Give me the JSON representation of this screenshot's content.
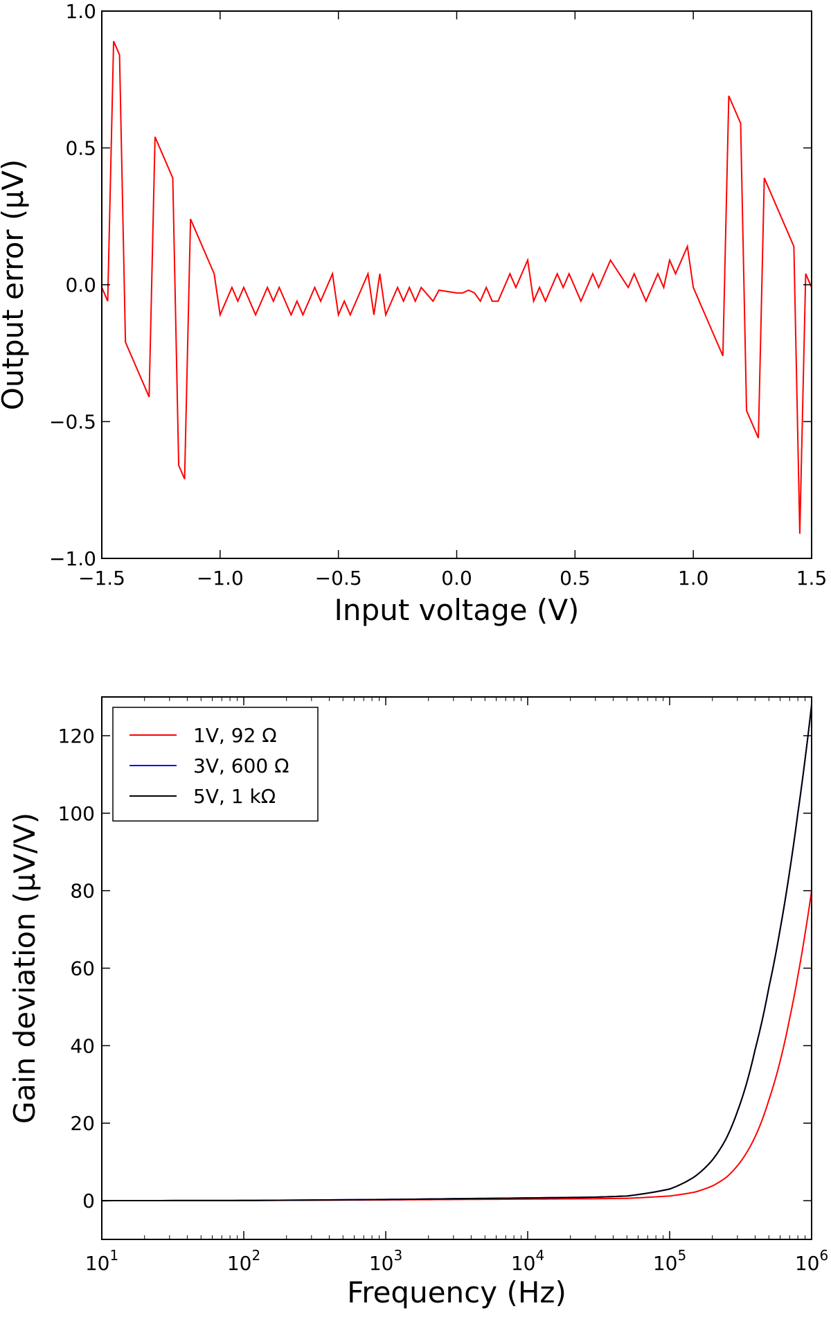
{
  "chart_data": [
    {
      "type": "line",
      "xlabel": "Input voltage (V)",
      "ylabel": "Output error (μV)",
      "xlim": [
        -1.5,
        1.5
      ],
      "ylim": [
        -1.0,
        1.0
      ],
      "xticks": [
        "−1.5",
        "−1.0",
        "−0.5",
        "0.0",
        "0.5",
        "1.0",
        "1.5"
      ],
      "xtick_values": [
        -1.5,
        -1.0,
        -0.5,
        0.0,
        0.5,
        1.0,
        1.5
      ],
      "yticks": [
        "−1.0",
        "−0.5",
        "0.0",
        "0.5",
        "1.0"
      ],
      "ytick_values": [
        -1.0,
        -0.5,
        0.0,
        0.5,
        1.0
      ],
      "grid": false,
      "series": [
        {
          "color": "#ff0000",
          "x": [
            -1.5,
            -1.475,
            -1.45,
            -1.425,
            -1.4,
            -1.3,
            -1.275,
            -1.2,
            -1.175,
            -1.15,
            -1.125,
            -1.025,
            -1.0,
            -0.95,
            -0.925,
            -0.9,
            -0.85,
            -0.8,
            -0.775,
            -0.75,
            -0.7,
            -0.675,
            -0.65,
            -0.6,
            -0.575,
            -0.525,
            -0.5,
            -0.475,
            -0.45,
            -0.375,
            -0.35,
            -0.325,
            -0.3,
            -0.25,
            -0.225,
            -0.2,
            -0.175,
            -0.15,
            -0.1,
            -0.075,
            0.0,
            0.025,
            0.05,
            0.075,
            0.1,
            0.125,
            0.15,
            0.175,
            0.225,
            0.25,
            0.3,
            0.325,
            0.35,
            0.375,
            0.425,
            0.45,
            0.475,
            0.525,
            0.575,
            0.6,
            0.65,
            0.725,
            0.75,
            0.8,
            0.85,
            0.875,
            0.9,
            0.925,
            0.975,
            1.0,
            1.125,
            1.15,
            1.2,
            1.225,
            1.275,
            1.3,
            1.425,
            1.45,
            1.475,
            1.5
          ],
          "y": [
            -0.01,
            -0.06,
            0.89,
            0.84,
            -0.21,
            -0.41,
            0.54,
            0.39,
            -0.66,
            -0.71,
            0.24,
            0.04,
            -0.11,
            -0.01,
            -0.06,
            -0.01,
            -0.11,
            -0.01,
            -0.06,
            -0.01,
            -0.11,
            -0.06,
            -0.11,
            -0.01,
            -0.06,
            0.04,
            -0.11,
            -0.06,
            -0.11,
            0.04,
            -0.11,
            0.04,
            -0.11,
            -0.01,
            -0.06,
            -0.01,
            -0.06,
            -0.01,
            -0.06,
            -0.02,
            -0.03,
            -0.03,
            -0.02,
            -0.03,
            -0.06,
            -0.01,
            -0.06,
            -0.06,
            0.04,
            -0.01,
            0.09,
            -0.06,
            -0.01,
            -0.06,
            0.04,
            -0.01,
            0.04,
            -0.06,
            0.04,
            -0.01,
            0.09,
            -0.01,
            0.04,
            -0.06,
            0.04,
            -0.01,
            0.09,
            0.04,
            0.14,
            -0.01,
            -0.26,
            0.69,
            0.59,
            -0.46,
            -0.56,
            0.39,
            0.14,
            -0.91,
            0.04,
            -0.01
          ]
        }
      ]
    },
    {
      "type": "line",
      "xlabel": "Frequency (Hz)",
      "ylabel": "Gain deviation (μV/V)",
      "xscale": "log",
      "xlim": [
        10,
        1000000
      ],
      "ylim": [
        -10,
        130
      ],
      "xticks": [
        {
          "base": "10",
          "exp": "1"
        },
        {
          "base": "10",
          "exp": "2"
        },
        {
          "base": "10",
          "exp": "3"
        },
        {
          "base": "10",
          "exp": "4"
        },
        {
          "base": "10",
          "exp": "5"
        },
        {
          "base": "10",
          "exp": "6"
        }
      ],
      "xtick_values": [
        10,
        100,
        1000,
        10000,
        100000,
        1000000
      ],
      "yticks": [
        "0",
        "20",
        "40",
        "60",
        "80",
        "100",
        "120"
      ],
      "ytick_values": [
        0,
        20,
        40,
        60,
        80,
        100,
        120
      ],
      "grid": false,
      "legend": "top-left",
      "x": [
        10,
        100,
        1000,
        3000,
        10000,
        30000,
        50000,
        100000,
        150000,
        200000,
        250000,
        300000,
        400000,
        500000,
        600000,
        700000,
        800000,
        900000,
        1000000
      ],
      "series": [
        {
          "name": "1V, 92 Ω",
          "color": "#ff0000",
          "values": [
            0,
            0.05,
            0.2,
            0.3,
            0.4,
            0.5,
            0.6,
            1.2,
            2.2,
            3.8,
            6.0,
            9.0,
            16.5,
            26.0,
            36.0,
            47.0,
            58.0,
            69.0,
            80.0
          ]
        },
        {
          "name": "3V, 600 Ω",
          "color": "#0000ff",
          "values": [
            0,
            0.05,
            0.3,
            0.5,
            0.7,
            0.9,
            1.2,
            3.0,
            6.2,
            10.5,
            16.0,
            23.0,
            39.0,
            55.0,
            70.0,
            85.0,
            100.0,
            114.0,
            128.0
          ]
        },
        {
          "name": "5V, 1 kΩ",
          "color": "#000000",
          "values": [
            0,
            0.05,
            0.3,
            0.5,
            0.7,
            0.9,
            1.2,
            3.0,
            6.2,
            10.5,
            16.0,
            23.0,
            39.0,
            55.0,
            70.0,
            85.0,
            100.0,
            114.0,
            128.0
          ]
        }
      ]
    }
  ]
}
